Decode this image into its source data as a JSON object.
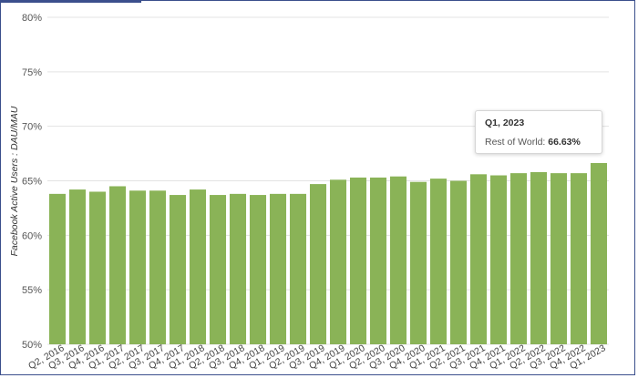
{
  "chart_data": {
    "type": "bar",
    "ylabel": "Facebook Active Users : DAU/MAU",
    "xlabel": "",
    "ylim": [
      50,
      80
    ],
    "yticks": [
      "50%",
      "55%",
      "60%",
      "65%",
      "70%",
      "75%",
      "80%"
    ],
    "ytick_values": [
      50,
      55,
      60,
      65,
      70,
      75,
      80
    ],
    "categories": [
      "Q2, 2016",
      "Q3, 2016",
      "Q4, 2016",
      "Q1, 2017",
      "Q2, 2017",
      "Q3, 2017",
      "Q4, 2017",
      "Q1, 2018",
      "Q2, 2018",
      "Q3, 2018",
      "Q4, 2018",
      "Q1, 2019",
      "Q2, 2019",
      "Q3, 2019",
      "Q4, 2019",
      "Q1, 2020",
      "Q2, 2020",
      "Q3, 2020",
      "Q4, 2020",
      "Q1, 2021",
      "Q2, 2021",
      "Q3, 2021",
      "Q4, 2021",
      "Q1, 2022",
      "Q2, 2022",
      "Q3, 2022",
      "Q4, 2022",
      "Q1, 2023"
    ],
    "series": [
      {
        "name": "Rest of World",
        "color": "#8ab357",
        "values": [
          63.8,
          64.2,
          64.0,
          64.5,
          64.1,
          64.1,
          63.7,
          64.2,
          63.7,
          63.8,
          63.7,
          63.8,
          63.8,
          64.7,
          65.1,
          65.3,
          65.3,
          65.4,
          64.9,
          65.2,
          65.0,
          65.6,
          65.5,
          65.7,
          65.8,
          65.7,
          65.7,
          66.63
        ]
      }
    ],
    "grid": true,
    "legend": "none",
    "tooltip": {
      "title": "Q1, 2023",
      "series_label": "Rest of World:",
      "value_label": "66.63%"
    }
  }
}
